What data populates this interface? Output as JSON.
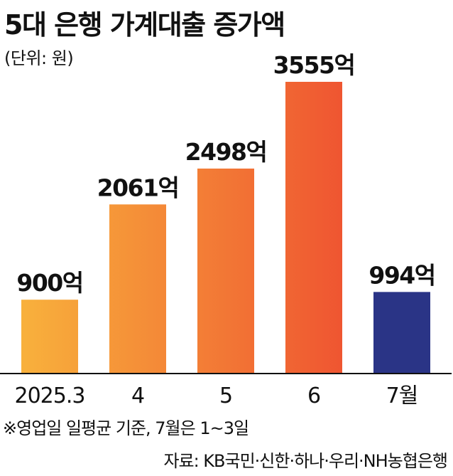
{
  "header": {
    "title": "5대 은행 가계대출 증가액",
    "unit_note": "(단위: 원)"
  },
  "chart_data": {
    "type": "bar",
    "title": "5대 은행 가계대출 증가액",
    "xlabel": "",
    "ylabel": "",
    "unit": "원",
    "categories": [
      "2025.3",
      "4",
      "5",
      "6",
      "7월"
    ],
    "values": [
      900,
      2061,
      2498,
      3555,
      994
    ],
    "value_labels": [
      "900억",
      "2061억",
      "2498억",
      "3555억",
      "994억"
    ],
    "ylim": [
      0,
      3555
    ],
    "grid": false,
    "colors": {
      "gradient_start": "#f8b13c",
      "gradient_end": "#ef5531",
      "highlight": "#2a3486",
      "axis": "#111111"
    },
    "highlight_index": 4
  },
  "footer": {
    "note": "※영업일 일평균 기준, 7월은 1~3일",
    "source": "자료: KB국민·신한·하나·우리·NH농협은행"
  }
}
